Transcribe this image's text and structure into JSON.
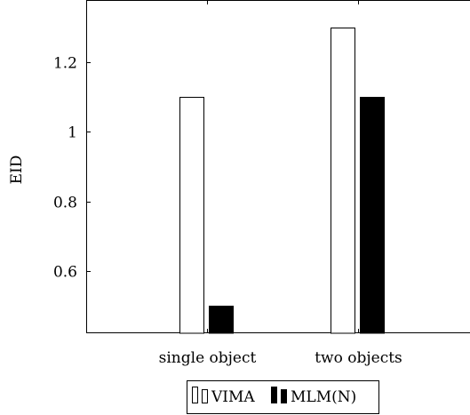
{
  "chart_data": {
    "type": "bar",
    "title": "",
    "xlabel": "",
    "ylabel": "EID",
    "categories": [
      "single object",
      "two objects"
    ],
    "series": [
      {
        "name": "VIMA",
        "values": [
          1.1,
          1.3
        ],
        "fill": "#ffffff",
        "stroke": "#000000"
      },
      {
        "name": "MLM(N)",
        "values": [
          0.5,
          1.1
        ],
        "fill": "#000000",
        "stroke": "#000000"
      }
    ],
    "ylim": [
      0.42,
      1.38
    ],
    "yticks": [
      {
        "value": 0.6,
        "label": "0.6"
      },
      {
        "value": 0.8,
        "label": "0.8"
      },
      {
        "value": 1.0,
        "label": "1"
      },
      {
        "value": 1.2,
        "label": "1.2"
      }
    ],
    "grid": false,
    "legend_position": "bottom-center"
  }
}
